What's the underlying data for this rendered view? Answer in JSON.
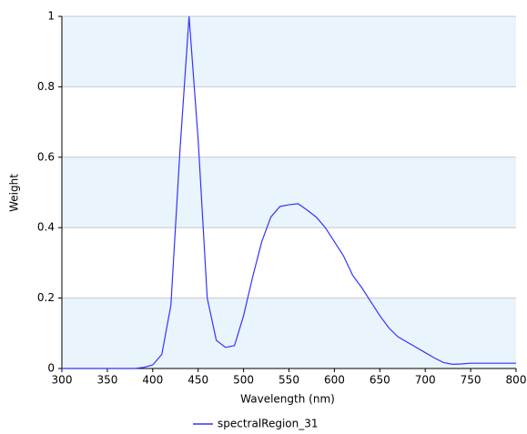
{
  "chart_data": {
    "type": "line",
    "x_label": "Wavelength (nm)",
    "y_label": "Weight",
    "x": [
      300,
      310,
      320,
      330,
      340,
      350,
      360,
      370,
      380,
      390,
      400,
      410,
      420,
      430,
      440,
      450,
      460,
      470,
      480,
      490,
      500,
      510,
      520,
      530,
      540,
      550,
      560,
      570,
      580,
      590,
      600,
      610,
      620,
      630,
      640,
      650,
      660,
      670,
      680,
      690,
      700,
      710,
      720,
      730,
      740,
      750,
      760,
      770,
      780,
      790,
      800
    ],
    "series": [
      {
        "name": "spectralRegion_31",
        "color": "#3333ff",
        "values": [
          0,
          0,
          0,
          0,
          0,
          0,
          0,
          0,
          0,
          0.003,
          0.01,
          0.04,
          0.18,
          0.62,
          1.0,
          0.65,
          0.2,
          0.08,
          0.06,
          0.065,
          0.15,
          0.26,
          0.36,
          0.43,
          0.46,
          0.465,
          0.468,
          0.45,
          0.43,
          0.4,
          0.36,
          0.32,
          0.265,
          0.23,
          0.19,
          0.15,
          0.115,
          0.09,
          0.075,
          0.06,
          0.045,
          0.03,
          0.017,
          0.012,
          0.013,
          0.015,
          0.015,
          0.015,
          0.015,
          0.015,
          0.015
        ]
      }
    ],
    "xlim": [
      300,
      800
    ],
    "ylim": [
      0,
      1
    ],
    "xticks": [
      300,
      350,
      400,
      450,
      500,
      550,
      600,
      650,
      700,
      750,
      800
    ],
    "yticks": [
      0,
      0.2,
      0.4,
      0.6,
      0.8,
      1
    ],
    "grid": true,
    "band_color": "#eaf4fc",
    "legend": "bottom"
  }
}
